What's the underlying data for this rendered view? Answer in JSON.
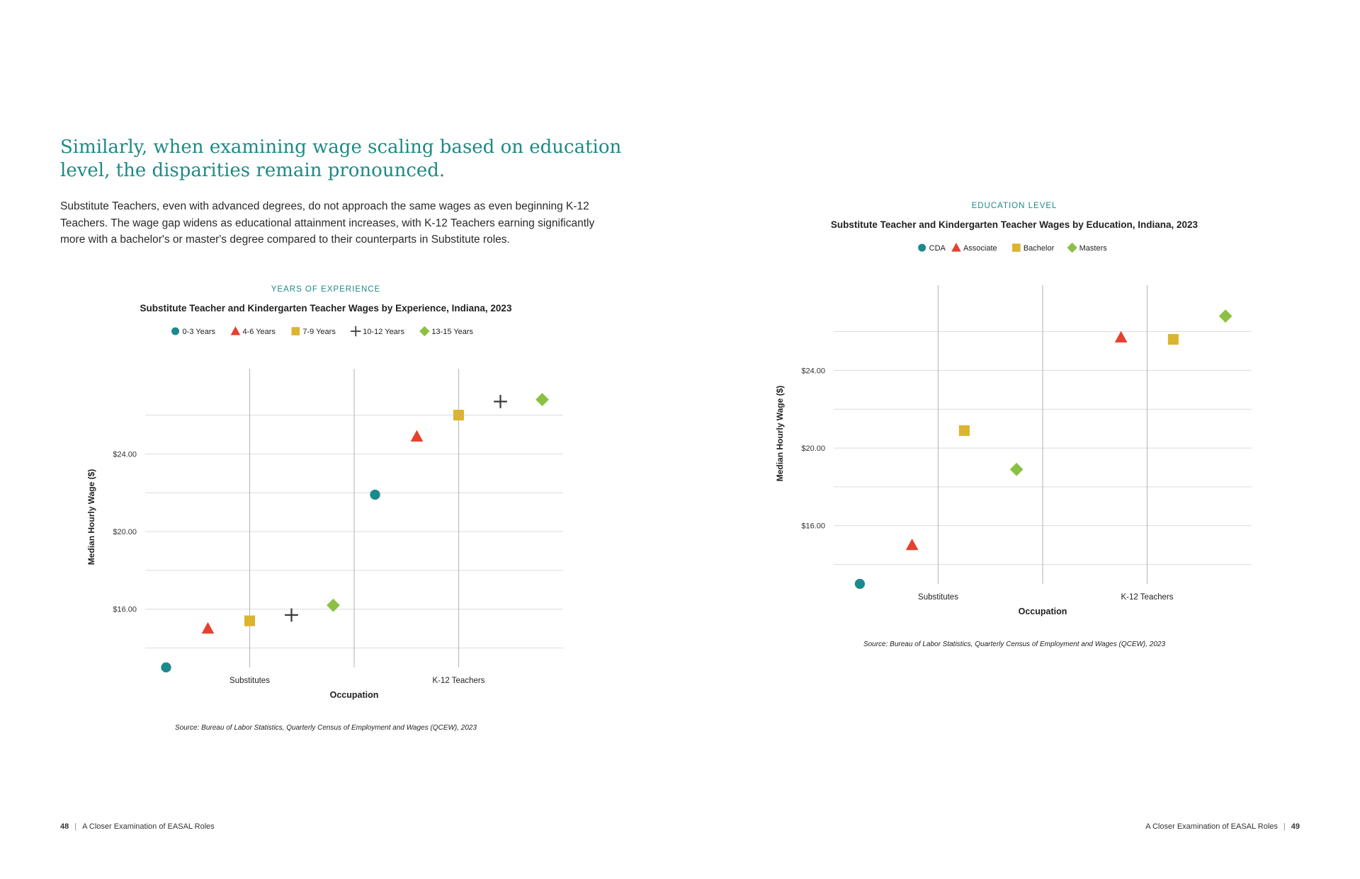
{
  "page": {
    "headline": "Similarly, when examining wage scaling based on education level, the disparities remain pronounced.",
    "intro": "Substitute Teachers, even with advanced degrees, do not approach the same wages as even beginning K-12 Teachers. The wage gap widens as educational attainment increases, with K-12 Teachers earning significantly more with a bachelor's or master's degree compared to their counterparts in Substitute roles.",
    "footer_left": {
      "page_number": "48",
      "text": "A Closer Examination of EASAL Roles"
    },
    "footer_right": {
      "page_number": "49",
      "text": "A Closer Examination of EASAL Roles"
    }
  },
  "chart_data": [
    {
      "type": "scatter",
      "kicker": "YEARS OF EXPERIENCE",
      "title": "Substitute Teacher and Kindergarten Teacher Wages by Experience, Indiana, 2023",
      "xlabel": "Occupation",
      "ylabel": "Median Hourly Wage ($)",
      "categories": [
        "Substitutes",
        "K-12 Teachers"
      ],
      "yticks": [
        "$16.00",
        "$20.00",
        "$24.00"
      ],
      "ytick_values": [
        16,
        20,
        24
      ],
      "ylim": [
        13,
        28.5
      ],
      "grid_y": [
        14,
        16,
        18,
        20,
        22,
        24,
        26
      ],
      "grid": true,
      "legend_position": "top",
      "source": "Source: Bureau of Labor Statistics, Quarterly Census of Employment and Wages (QCEW), 2023",
      "series": [
        {
          "name": "0-3 Years",
          "marker": "circle",
          "color": "#1c8a8c",
          "values": [
            13.0,
            21.9
          ]
        },
        {
          "name": "4-6 Years",
          "marker": "triangle",
          "color": "#e5412e",
          "values": [
            15.0,
            24.9
          ]
        },
        {
          "name": "7-9 Years",
          "marker": "square",
          "color": "#dbb430",
          "values": [
            15.4,
            26.0
          ]
        },
        {
          "name": "10-12 Years",
          "marker": "plus",
          "color": "#3a3a3a",
          "values": [
            15.7,
            26.7
          ]
        },
        {
          "name": "13-15 Years",
          "marker": "diamond",
          "color": "#8cc043",
          "values": [
            16.2,
            26.8
          ]
        }
      ]
    },
    {
      "type": "scatter",
      "kicker": "EDUCATION LEVEL",
      "title": "Substitute Teacher and Kindergarten Teacher Wages by Education, Indiana, 2023",
      "xlabel": "Occupation",
      "ylabel": "Median Hourly Wage ($)",
      "categories": [
        "Substitutes",
        "K-12 Teachers"
      ],
      "yticks": [
        "$16.00",
        "$20.00",
        "$24.00"
      ],
      "ytick_values": [
        16,
        20,
        24
      ],
      "ylim": [
        13,
        28.5
      ],
      "grid_y": [
        14,
        16,
        18,
        20,
        22,
        24,
        26
      ],
      "grid": true,
      "legend_position": "top",
      "source": "Source: Bureau of Labor Statistics, Quarterly Census of Employment and Wages (QCEW), 2023",
      "series": [
        {
          "name": "CDA",
          "marker": "circle",
          "color": "#1c8a8c",
          "values": [
            13.0,
            null
          ]
        },
        {
          "name": "Associate",
          "marker": "triangle",
          "color": "#e5412e",
          "values": [
            15.0,
            25.7
          ]
        },
        {
          "name": "Bachelor",
          "marker": "square",
          "color": "#dbb430",
          "values": [
            20.9,
            25.6
          ]
        },
        {
          "name": "Masters",
          "marker": "diamond",
          "color": "#8cc043",
          "values": [
            18.9,
            26.8
          ]
        }
      ]
    }
  ]
}
